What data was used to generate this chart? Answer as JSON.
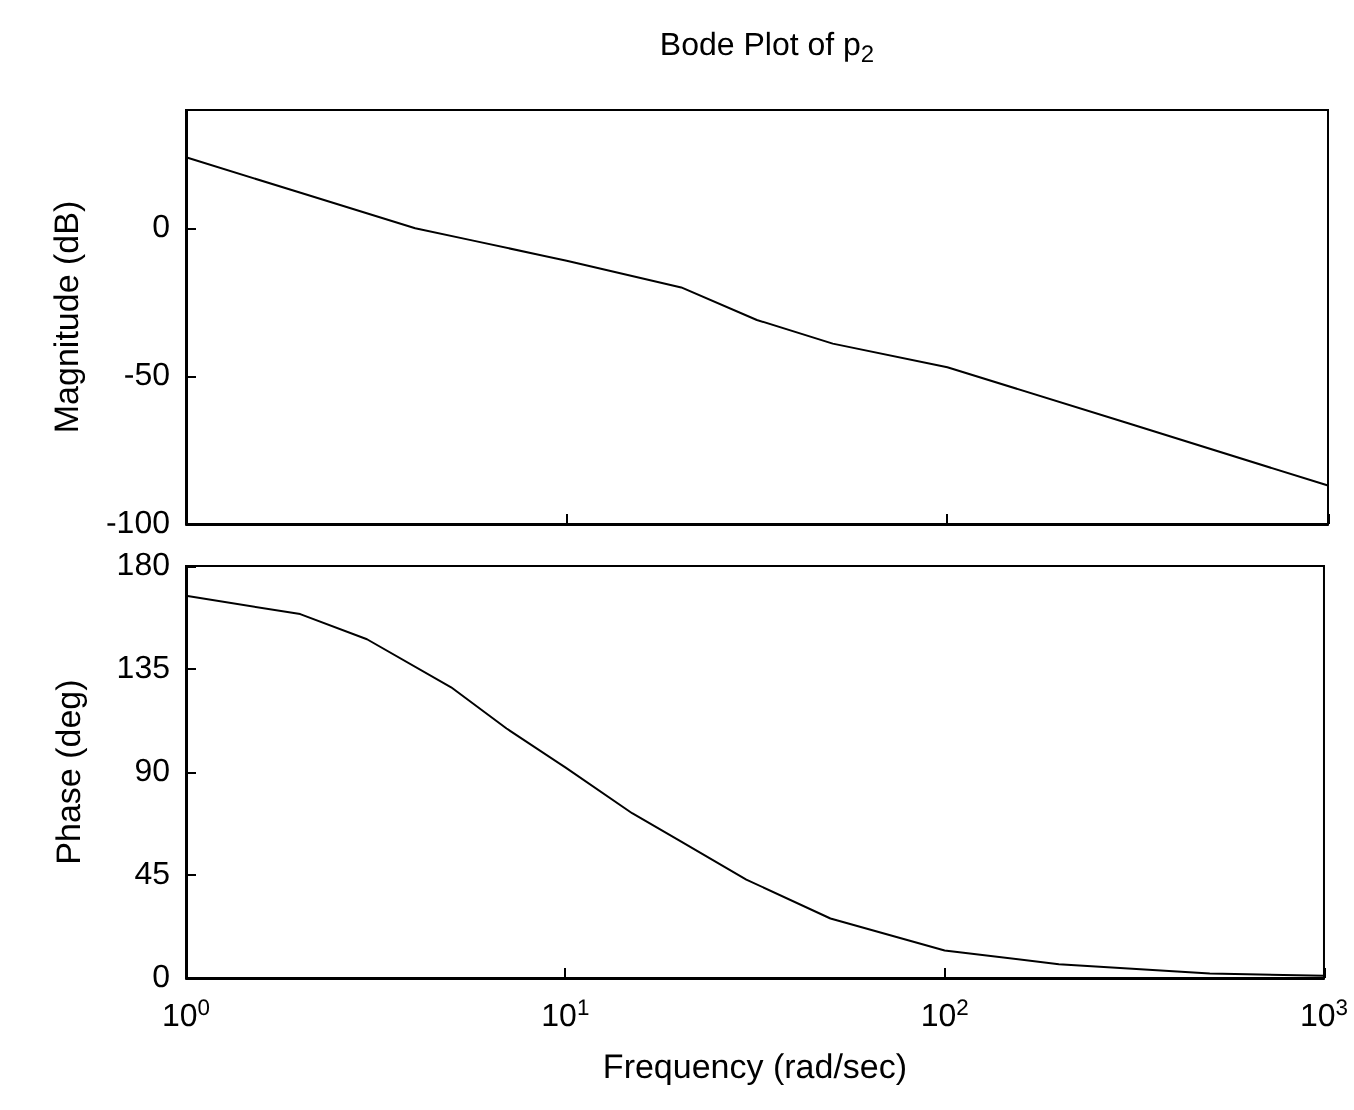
{
  "chart_data": [
    {
      "type": "line",
      "title": "Bode Plot of p$_{2}$",
      "ylabel": "Magnitude (dB)",
      "log": "x",
      "tick_labels": "y",
      "grid": false,
      "marker": "none",
      "line_style": "solid",
      "xlim": [
        1,
        1000
      ],
      "xticks": [
        {
          "value": 1,
          "label": null
        },
        {
          "value": 10,
          "label": null
        },
        {
          "value": 100,
          "label": null
        },
        {
          "value": 1000,
          "label": null
        }
      ],
      "ylim": [
        -100,
        40
      ],
      "yticks": [
        -100,
        -50,
        0
      ],
      "series": [
        {
          "color": "#000000",
          "x": [
            1,
            2,
            4,
            5.6,
            10,
            20,
            31.6,
            50,
            100,
            300,
            1000
          ],
          "values": [
            24,
            12,
            0,
            -4,
            -11,
            -20,
            -31,
            -39,
            -47,
            -66,
            -87
          ]
        }
      ]
    },
    {
      "type": "line",
      "xlabel": "Frequency (rad/sec)",
      "ylabel": "Phase (deg)",
      "log": "x",
      "grid": false,
      "marker": "none",
      "line_style": "solid",
      "xlim": [
        1,
        1000
      ],
      "xticks": [
        {
          "value": 1,
          "label": "10$^{0}$"
        },
        {
          "value": 10,
          "label": "10$^{1}$"
        },
        {
          "value": 100,
          "label": "10$^{2}$"
        },
        {
          "value": 1000,
          "label": "10$^{3}$"
        }
      ],
      "ylim": [
        0,
        180
      ],
      "yticks": [
        0,
        45,
        90,
        135,
        180
      ],
      "series": [
        {
          "color": "#000000",
          "x": [
            1,
            2,
            3,
            5,
            7,
            10,
            15,
            20,
            30,
            50,
            100,
            200,
            500,
            1000
          ],
          "values": [
            167,
            159,
            148,
            127,
            109,
            92,
            72,
            60,
            43,
            26,
            12,
            6,
            2,
            1
          ]
        }
      ]
    }
  ]
}
